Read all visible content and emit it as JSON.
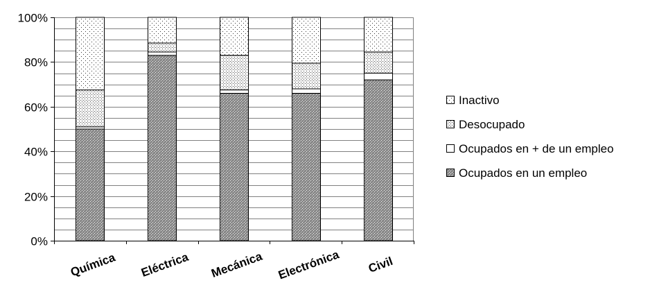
{
  "chart_data": {
    "type": "bar",
    "stacked": true,
    "categories": [
      "Química",
      "Eléctrica",
      "Mecánica",
      "Electrónica",
      "Civil"
    ],
    "series": [
      {
        "name": "Ocupados en un empleo",
        "values": [
          50,
          83,
          66,
          66,
          72
        ],
        "pattern": "dense-hatch"
      },
      {
        "name": "Ocupados en + de un empleo",
        "values": [
          1,
          1.5,
          1.5,
          2,
          3
        ],
        "pattern": "white"
      },
      {
        "name": "Desocupado",
        "values": [
          16.5,
          4,
          15.5,
          11.5,
          9.5
        ],
        "pattern": "medium-dots"
      },
      {
        "name": "Inactivo",
        "values": [
          32.5,
          11.5,
          17,
          20.5,
          15.5
        ],
        "pattern": "sparse-dots"
      }
    ],
    "legend_order": [
      "Inactivo",
      "Desocupado",
      "Ocupados en + de un empleo",
      "Ocupados en un empleo"
    ],
    "legend_position": "right",
    "ylim": [
      0,
      100
    ],
    "yticks": [
      "0%",
      "20%",
      "40%",
      "60%",
      "80%",
      "100%"
    ],
    "grid": true,
    "xlabel": "",
    "ylabel": "",
    "title": ""
  }
}
